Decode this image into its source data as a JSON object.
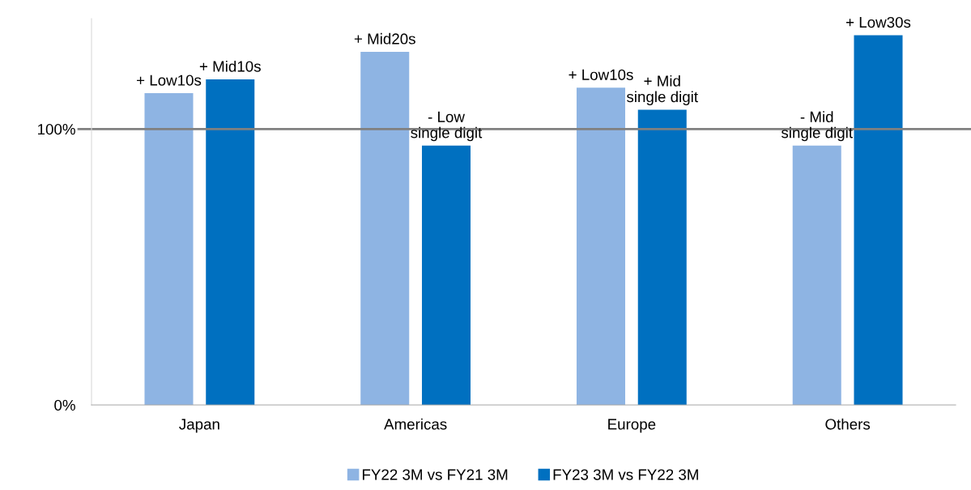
{
  "chart_data": {
    "type": "bar",
    "categories": [
      "Japan",
      "Americas",
      "Europe",
      "Others"
    ],
    "series": [
      {
        "name": "FY22 3M vs FY21 3M",
        "color": "#8eb4e3",
        "values": [
          113,
          128,
          115,
          94
        ],
        "value_labels": [
          "+ Low10s",
          "+ Mid20s",
          "+ Low10s",
          "- Mid\nsingle digit"
        ]
      },
      {
        "name": "FY23 3M vs FY22 3M",
        "color": "#0070c0",
        "values": [
          118,
          94,
          107,
          134
        ],
        "value_labels": [
          "+ Mid10s",
          "- Low\nsingle digit",
          "+ Mid\nsingle digit",
          "+ Low30s"
        ]
      }
    ],
    "ylim": [
      0,
      140
    ],
    "yticks": [
      {
        "value": 0,
        "label": "0%"
      },
      {
        "value": 100,
        "label": "100%"
      }
    ],
    "ref_lines": [
      {
        "axis": "y",
        "value": 100,
        "color": "#808080"
      }
    ],
    "grid": false,
    "legend": "bottom"
  }
}
